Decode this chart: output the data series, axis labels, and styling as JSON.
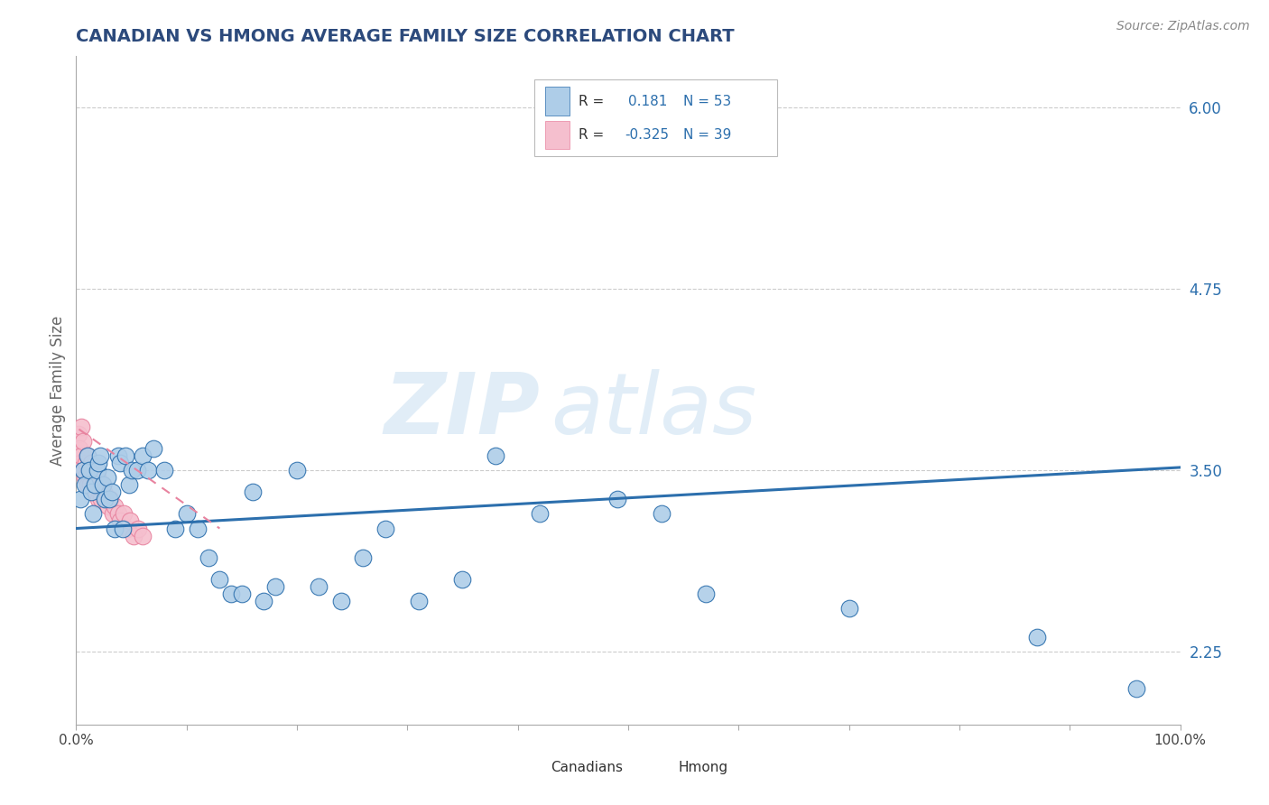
{
  "title": "CANADIAN VS HMONG AVERAGE FAMILY SIZE CORRELATION CHART",
  "source_text": "Source: ZipAtlas.com",
  "ylabel": "Average Family Size",
  "watermark_zip": "ZIP",
  "watermark_atlas": "atlas",
  "xlim": [
    0.0,
    1.0
  ],
  "ylim": [
    1.75,
    6.35
  ],
  "yticks_right": [
    2.25,
    3.5,
    4.75,
    6.0
  ],
  "xticks": [
    0.0,
    0.1,
    0.2,
    0.3,
    0.4,
    0.5,
    0.6,
    0.7,
    0.8,
    0.9,
    1.0
  ],
  "xticklabels": [
    "0.0%",
    "",
    "",
    "",
    "",
    "",
    "",
    "",
    "",
    "",
    "100.0%"
  ],
  "canadian_color": "#aecde8",
  "hmong_color": "#f5bfce",
  "trend_canadian_color": "#2c6fad",
  "trend_hmong_color": "#e8839f",
  "title_color": "#2c4a7c",
  "grid_color": "#cccccc",
  "R_canadian": 0.181,
  "N_canadian": 53,
  "R_hmong": -0.325,
  "N_hmong": 39,
  "canadian_x": [
    0.004,
    0.006,
    0.008,
    0.01,
    0.012,
    0.014,
    0.015,
    0.017,
    0.019,
    0.02,
    0.022,
    0.024,
    0.026,
    0.028,
    0.03,
    0.032,
    0.035,
    0.038,
    0.04,
    0.042,
    0.045,
    0.048,
    0.05,
    0.055,
    0.06,
    0.065,
    0.07,
    0.08,
    0.09,
    0.1,
    0.11,
    0.12,
    0.13,
    0.14,
    0.15,
    0.16,
    0.17,
    0.18,
    0.2,
    0.22,
    0.24,
    0.26,
    0.28,
    0.31,
    0.35,
    0.38,
    0.42,
    0.49,
    0.53,
    0.57,
    0.7,
    0.87,
    0.96
  ],
  "canadian_y": [
    3.3,
    3.5,
    3.4,
    3.6,
    3.5,
    3.35,
    3.2,
    3.4,
    3.5,
    3.55,
    3.6,
    3.4,
    3.3,
    3.45,
    3.3,
    3.35,
    3.1,
    3.6,
    3.55,
    3.1,
    3.6,
    3.4,
    3.5,
    3.5,
    3.6,
    3.5,
    3.65,
    3.5,
    3.1,
    3.2,
    3.1,
    2.9,
    2.75,
    2.65,
    2.65,
    3.35,
    2.6,
    2.7,
    3.5,
    2.7,
    2.6,
    2.9,
    3.1,
    2.6,
    2.75,
    3.6,
    3.2,
    3.3,
    3.2,
    2.65,
    2.55,
    2.35,
    2.0
  ],
  "hmong_x": [
    0.002,
    0.003,
    0.004,
    0.005,
    0.005,
    0.006,
    0.007,
    0.008,
    0.009,
    0.01,
    0.01,
    0.011,
    0.012,
    0.013,
    0.014,
    0.015,
    0.016,
    0.017,
    0.018,
    0.019,
    0.02,
    0.021,
    0.022,
    0.023,
    0.024,
    0.025,
    0.027,
    0.029,
    0.031,
    0.033,
    0.035,
    0.038,
    0.04,
    0.043,
    0.046,
    0.049,
    0.052,
    0.056,
    0.06
  ],
  "hmong_y": [
    3.75,
    3.65,
    3.55,
    3.8,
    3.6,
    3.7,
    3.5,
    3.45,
    3.55,
    3.4,
    3.6,
    3.5,
    3.45,
    3.4,
    3.55,
    3.5,
    3.45,
    3.4,
    3.35,
    3.45,
    3.3,
    3.4,
    3.35,
    3.3,
    3.4,
    3.35,
    3.3,
    3.25,
    3.3,
    3.2,
    3.25,
    3.2,
    3.15,
    3.2,
    3.1,
    3.15,
    3.05,
    3.1,
    3.05
  ],
  "trend_can_x0": 0.0,
  "trend_can_x1": 1.0,
  "trend_can_y0": 3.1,
  "trend_can_y1": 3.52,
  "trend_hm_x0": -0.01,
  "trend_hm_x1": 0.13,
  "trend_hm_y0": 3.85,
  "trend_hm_y1": 3.1,
  "legend_labels": [
    "Canadians",
    "Hmong"
  ]
}
